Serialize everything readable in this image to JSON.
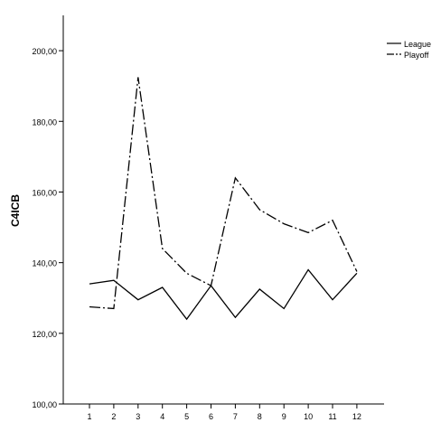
{
  "chart_data": {
    "type": "line",
    "title": "",
    "xlabel": "",
    "ylabel": "C4ICB",
    "x": [
      1,
      2,
      3,
      4,
      5,
      6,
      7,
      8,
      9,
      10,
      11,
      12
    ],
    "x_tick_labels": [
      "1",
      "2",
      "3",
      "4",
      "5",
      "6",
      "7",
      "8",
      "9",
      "10",
      "11",
      "12"
    ],
    "ylim": [
      100,
      210
    ],
    "y_ticks": [
      100,
      120,
      140,
      160,
      180,
      200
    ],
    "y_tick_labels": [
      "100,00",
      "120,00",
      "140,00",
      "160,00",
      "180,00",
      "200,00"
    ],
    "grid": false,
    "legend_position": "top-right",
    "series": [
      {
        "name": "League",
        "line_style": "solid",
        "color": "#000000",
        "values": [
          134,
          135,
          129.5,
          133,
          124,
          133.5,
          124.5,
          132.5,
          127,
          138,
          129.5,
          137
        ]
      },
      {
        "name": "Playoff",
        "line_style": "dashdot",
        "color": "#000000",
        "values": [
          127.5,
          127,
          192.5,
          144,
          137,
          133.5,
          164,
          155,
          151,
          148.5,
          152,
          137.5
        ]
      }
    ]
  }
}
